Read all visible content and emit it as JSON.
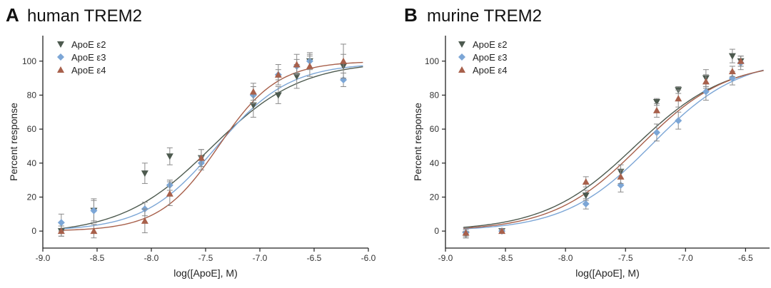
{
  "panels": [
    {
      "letter": "A",
      "title": "human TREM2",
      "chart_data": {
        "type": "scatter",
        "fit": "sigmoidal dose-response curve",
        "xlabel": "log([ApoE], M)",
        "ylabel": "Percent response",
        "xlim": [
          -9.0,
          -6.0
        ],
        "ylim": [
          -10,
          115
        ],
        "xticks": [
          -9.0,
          -8.5,
          -8.0,
          -7.5,
          -7.0,
          -6.5,
          -6.0
        ],
        "xtick_labels": [
          "-9.0",
          "-8.5",
          "-8.0",
          "-7.5",
          "-7.0",
          "-6.5",
          "-6.0"
        ],
        "yticks": [
          0,
          20,
          40,
          60,
          80,
          100
        ],
        "ytick_labels": [
          "0",
          "20",
          "40",
          "60",
          "80",
          "100"
        ],
        "series": [
          {
            "name": "ApoE ε2",
            "marker": "triangle-down",
            "color": "#4d5a4f",
            "x": [
              -8.83,
              -8.53,
              -8.06,
              -7.83,
              -7.54,
              -7.06,
              -6.83,
              -6.66,
              -6.54,
              -6.23
            ],
            "y": [
              0,
              12,
              34,
              44,
              43,
              74,
              80,
              91,
              100,
              97
            ],
            "err": [
              3,
              6,
              6,
              5,
              5,
              7,
              5,
              7,
              5,
              7
            ],
            "fit": {
              "bottom": -2,
              "top": 100,
              "logEC50": -7.45,
              "hill": 1.05
            }
          },
          {
            "name": "ApoE ε3",
            "marker": "diamond",
            "color": "#7ca6d6",
            "x": [
              -8.83,
              -8.53,
              -8.06,
              -7.83,
              -7.54,
              -7.06,
              -6.83,
              -6.66,
              -6.54,
              -6.23
            ],
            "y": [
              5,
              12,
              13,
              27,
              40,
              80,
              92,
              97,
              100,
              89
            ],
            "err": [
              5,
              7,
              4,
              3,
              4,
              5,
              3,
              4,
              4,
              4
            ],
            "fit": {
              "bottom": 0,
              "top": 99,
              "logEC50": -7.4,
              "hill": 1.3
            }
          },
          {
            "name": "ApoE ε4",
            "marker": "triangle-up",
            "color": "#a8604b",
            "x": [
              -8.83,
              -8.53,
              -8.06,
              -7.83,
              -7.54,
              -7.06,
              -6.83,
              -6.66,
              -6.54,
              -6.23
            ],
            "y": [
              0,
              0,
              6,
              22,
              43,
              82,
              92,
              98,
              97,
              100
            ],
            "err": [
              3,
              4,
              7,
              7,
              5,
              5,
              6,
              6,
              6,
              10
            ],
            "fit": {
              "bottom": 0,
              "top": 100,
              "logEC50": -7.38,
              "hill": 1.6
            }
          }
        ]
      }
    },
    {
      "letter": "B",
      "title": "murine TREM2",
      "chart_data": {
        "type": "scatter",
        "fit": "sigmoidal dose-response curve",
        "xlabel": "log([ApoE], M)",
        "ylabel": "Percent response",
        "xlim": [
          -9.0,
          -6.3
        ],
        "ylim": [
          -10,
          115
        ],
        "xticks": [
          -9.0,
          -8.5,
          -8.0,
          -7.5,
          -7.0,
          -6.5
        ],
        "xtick_labels": [
          "-9.0",
          "-8.5",
          "-8.0",
          "-7.5",
          "-7.0",
          "-6.5"
        ],
        "yticks": [
          0,
          20,
          40,
          60,
          80,
          100
        ],
        "ytick_labels": [
          "0",
          "20",
          "40",
          "60",
          "80",
          "100"
        ],
        "series": [
          {
            "name": "ApoE ε2",
            "marker": "triangle-down",
            "color": "#4d5a4f",
            "x": [
              -8.83,
              -8.53,
              -7.83,
              -7.54,
              -7.24,
              -7.06,
              -6.83,
              -6.61,
              -6.54
            ],
            "y": [
              -2,
              0,
              21,
              35,
              76,
              83,
              90,
              103,
              100
            ],
            "err": [
              2,
              1,
              3,
              4,
              2,
              2,
              5,
              4,
              3
            ],
            "fit": {
              "bottom": 0,
              "top": 100,
              "logEC50": -7.42,
              "hill": 1.15
            }
          },
          {
            "name": "ApoE ε3",
            "marker": "diamond",
            "color": "#7ca6d6",
            "x": [
              -8.83,
              -8.53,
              -7.83,
              -7.54,
              -7.24,
              -7.06,
              -6.83,
              -6.61,
              -6.54
            ],
            "y": [
              -1,
              0,
              16,
              27,
              58,
              65,
              82,
              90,
              99
            ],
            "err": [
              3,
              1,
              3,
              4,
              5,
              5,
              5,
              4,
              4
            ],
            "fit": {
              "bottom": 0,
              "top": 102,
              "logEC50": -7.28,
              "hill": 1.2
            }
          },
          {
            "name": "ApoE ε4",
            "marker": "triangle-up",
            "color": "#a8604b",
            "x": [
              -8.83,
              -8.53,
              -7.83,
              -7.54,
              -7.24,
              -7.06,
              -6.83,
              -6.61,
              -6.54
            ],
            "y": [
              -1,
              0,
              29,
              32,
              71,
              78,
              88,
              94,
              100
            ],
            "err": [
              2,
              1,
              3,
              4,
              4,
              5,
              4,
              3,
              3
            ],
            "fit": {
              "bottom": 0,
              "top": 100,
              "logEC50": -7.38,
              "hill": 1.2
            }
          }
        ]
      }
    }
  ]
}
